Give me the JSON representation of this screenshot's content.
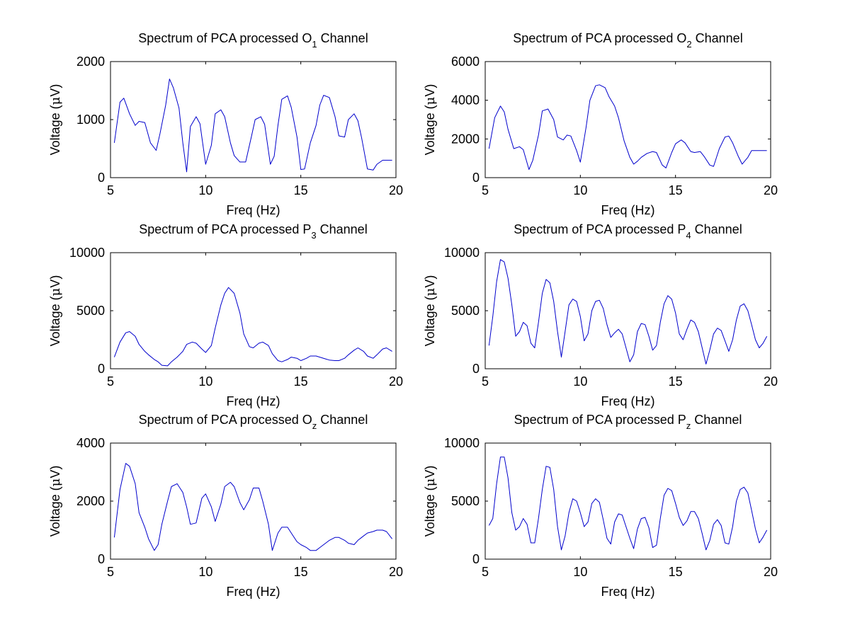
{
  "figure": {
    "background": "#ffffff",
    "line_color": "#0000cc",
    "axis_color": "#000000"
  },
  "chart_data": [
    {
      "type": "line",
      "title_prefix": "Spectrum of PCA processed O",
      "title_subscript": "1",
      "title_suffix": " Channel",
      "xlabel": "Freq (Hz)",
      "ylabel_prefix": "Voltage (",
      "ylabel_greek": "μ",
      "ylabel_suffix": "V)",
      "xlim": [
        5,
        20
      ],
      "ylim": [
        0,
        2000
      ],
      "xticks": [
        5,
        10,
        15,
        20
      ],
      "yticks": [
        0,
        1000,
        2000
      ],
      "x": [
        5.2,
        5.5,
        5.7,
        6.0,
        6.3,
        6.5,
        6.8,
        7.1,
        7.4,
        7.6,
        7.9,
        8.1,
        8.3,
        8.6,
        8.8,
        9.0,
        9.2,
        9.5,
        9.7,
        10.0,
        10.3,
        10.5,
        10.8,
        11.0,
        11.3,
        11.5,
        11.8,
        12.1,
        12.4,
        12.6,
        12.9,
        13.1,
        13.4,
        13.6,
        13.8,
        14.0,
        14.3,
        14.5,
        14.8,
        15.0,
        15.2,
        15.5,
        15.8,
        16.0,
        16.2,
        16.5,
        16.8,
        17.0,
        17.3,
        17.5,
        17.8,
        18.0,
        18.2,
        18.5,
        18.8,
        19.0,
        19.3,
        19.5,
        19.8
      ],
      "series": [
        {
          "values": [
            600,
            1300,
            1370,
            1100,
            900,
            970,
            950,
            600,
            470,
            760,
            1250,
            1700,
            1550,
            1200,
            600,
            100,
            880,
            1050,
            930,
            230,
            560,
            1100,
            1170,
            1050,
            600,
            380,
            270,
            270,
            700,
            1000,
            1050,
            920,
            230,
            370,
            900,
            1350,
            1410,
            1210,
            700,
            140,
            150,
            600,
            900,
            1250,
            1420,
            1380,
            1050,
            720,
            700,
            1000,
            1100,
            980,
            680,
            150,
            130,
            230,
            300,
            300,
            300
          ]
        }
      ]
    },
    {
      "type": "line",
      "title_prefix": "Spectrum of PCA processed O",
      "title_subscript": "2",
      "title_suffix": " Channel",
      "xlabel": "Freq (Hz)",
      "ylabel_prefix": "Voltage (",
      "ylabel_greek": "μ",
      "ylabel_suffix": "V)",
      "xlim": [
        5,
        20
      ],
      "ylim": [
        0,
        6000
      ],
      "xticks": [
        5,
        10,
        15,
        20
      ],
      "yticks": [
        0,
        2000,
        4000,
        6000
      ],
      "x": [
        5.2,
        5.5,
        5.8,
        6.0,
        6.2,
        6.5,
        6.8,
        7.0,
        7.3,
        7.5,
        7.8,
        8.0,
        8.3,
        8.6,
        8.8,
        9.1,
        9.3,
        9.5,
        9.8,
        10.0,
        10.3,
        10.5,
        10.8,
        11.0,
        11.3,
        11.5,
        11.8,
        12.0,
        12.3,
        12.6,
        12.8,
        13.0,
        13.2,
        13.5,
        13.8,
        14.0,
        14.3,
        14.5,
        14.8,
        15.0,
        15.3,
        15.5,
        15.8,
        16.0,
        16.3,
        16.5,
        16.8,
        17.0,
        17.3,
        17.6,
        17.8,
        18.0,
        18.3,
        18.5,
        18.8,
        19.0,
        19.2,
        19.5,
        19.8
      ],
      "series": [
        {
          "values": [
            1500,
            3100,
            3700,
            3400,
            2500,
            1500,
            1600,
            1450,
            420,
            900,
            2200,
            3450,
            3550,
            3000,
            2100,
            1950,
            2200,
            2150,
            1400,
            800,
            2600,
            4000,
            4750,
            4800,
            4650,
            4200,
            3700,
            3100,
            1900,
            1050,
            700,
            850,
            1050,
            1250,
            1350,
            1300,
            650,
            500,
            1300,
            1750,
            1950,
            1800,
            1350,
            1300,
            1350,
            1100,
            650,
            580,
            1500,
            2100,
            2150,
            1800,
            1100,
            700,
            1050,
            1400,
            1400,
            1400,
            1400
          ]
        }
      ]
    },
    {
      "type": "line",
      "title_prefix": "Spectrum of PCA processed P",
      "title_subscript": "3",
      "title_suffix": " Channel",
      "xlabel": "Freq (Hz)",
      "ylabel_prefix": "Voltage (",
      "ylabel_greek": "μ",
      "ylabel_suffix": "V)",
      "xlim": [
        5,
        20
      ],
      "ylim": [
        0,
        10000
      ],
      "xticks": [
        5,
        10,
        15,
        20
      ],
      "yticks": [
        0,
        5000,
        10000
      ],
      "x": [
        5.2,
        5.5,
        5.8,
        6.0,
        6.3,
        6.5,
        6.8,
        7.0,
        7.3,
        7.5,
        7.7,
        8.0,
        8.2,
        8.5,
        8.8,
        9.0,
        9.3,
        9.5,
        9.8,
        10.0,
        10.3,
        10.5,
        10.8,
        11.0,
        11.2,
        11.5,
        11.8,
        12.0,
        12.3,
        12.5,
        12.8,
        13.0,
        13.3,
        13.5,
        13.8,
        14.0,
        14.3,
        14.5,
        14.8,
        15.0,
        15.3,
        15.5,
        15.8,
        16.0,
        16.3,
        16.5,
        16.8,
        17.0,
        17.3,
        17.5,
        17.8,
        18.0,
        18.3,
        18.5,
        18.8,
        19.0,
        19.3,
        19.5,
        19.8
      ],
      "series": [
        {
          "values": [
            1000,
            2300,
            3100,
            3200,
            2800,
            2100,
            1500,
            1200,
            800,
            600,
            300,
            250,
            600,
            1000,
            1500,
            2100,
            2300,
            2200,
            1700,
            1400,
            2000,
            3500,
            5500,
            6500,
            7000,
            6500,
            4800,
            3000,
            1900,
            1800,
            2200,
            2300,
            2000,
            1300,
            700,
            600,
            800,
            1000,
            900,
            700,
            900,
            1100,
            1100,
            1000,
            850,
            750,
            700,
            700,
            900,
            1200,
            1600,
            1800,
            1500,
            1100,
            900,
            1200,
            1700,
            1800,
            1500
          ]
        }
      ]
    },
    {
      "type": "line",
      "title_prefix": "Spectrum of PCA processed P",
      "title_subscript": "4",
      "title_suffix": " Channel",
      "xlabel": "Freq (Hz)",
      "ylabel_prefix": "Voltage (",
      "ylabel_greek": "μ",
      "ylabel_suffix": "V)",
      "xlim": [
        5,
        20
      ],
      "ylim": [
        0,
        10000
      ],
      "xticks": [
        5,
        10,
        15,
        20
      ],
      "yticks": [
        0,
        5000,
        10000
      ],
      "x": [
        5.2,
        5.4,
        5.6,
        5.8,
        6.0,
        6.2,
        6.4,
        6.6,
        6.8,
        7.0,
        7.2,
        7.4,
        7.6,
        7.8,
        8.0,
        8.2,
        8.4,
        8.6,
        8.8,
        9.0,
        9.2,
        9.4,
        9.6,
        9.8,
        10.0,
        10.2,
        10.4,
        10.6,
        10.8,
        11.0,
        11.2,
        11.4,
        11.6,
        11.8,
        12.0,
        12.2,
        12.4,
        12.6,
        12.8,
        13.0,
        13.2,
        13.4,
        13.6,
        13.8,
        14.0,
        14.2,
        14.4,
        14.6,
        14.8,
        15.0,
        15.2,
        15.4,
        15.6,
        15.8,
        16.0,
        16.2,
        16.4,
        16.6,
        16.8,
        17.0,
        17.2,
        17.4,
        17.6,
        17.8,
        18.0,
        18.2,
        18.4,
        18.6,
        18.8,
        19.0,
        19.2,
        19.4,
        19.6,
        19.8
      ],
      "series": [
        {
          "values": [
            2000,
            4500,
            7500,
            9400,
            9200,
            7800,
            5500,
            2800,
            3200,
            4000,
            3700,
            2200,
            1800,
            4000,
            6500,
            7700,
            7400,
            5800,
            3200,
            1000,
            3200,
            5500,
            6000,
            5800,
            4500,
            2400,
            3000,
            5000,
            5800,
            5900,
            5200,
            3800,
            2700,
            3100,
            3400,
            3000,
            1800,
            600,
            1200,
            3200,
            3900,
            3800,
            2800,
            1600,
            2000,
            4000,
            5600,
            6300,
            6000,
            4800,
            3000,
            2500,
            3400,
            4200,
            4000,
            3200,
            1800,
            400,
            1600,
            3000,
            3500,
            3300,
            2400,
            1500,
            2500,
            4200,
            5400,
            5600,
            5000,
            3800,
            2500,
            1800,
            2200,
            2800
          ]
        }
      ]
    },
    {
      "type": "line",
      "title_prefix": "Spectrum of PCA processed O",
      "title_subscript": "z",
      "title_suffix": " Channel",
      "xlabel": "Freq (Hz)",
      "ylabel_prefix": "Voltage (",
      "ylabel_greek": "μ",
      "ylabel_suffix": "V)",
      "xlim": [
        5,
        20
      ],
      "ylim": [
        0,
        4000
      ],
      "xticks": [
        5,
        10,
        15,
        20
      ],
      "yticks": [
        0,
        2000,
        4000
      ],
      "x": [
        5.2,
        5.5,
        5.8,
        6.0,
        6.3,
        6.5,
        6.8,
        7.0,
        7.3,
        7.5,
        7.7,
        8.0,
        8.2,
        8.5,
        8.8,
        9.0,
        9.2,
        9.5,
        9.8,
        10.0,
        10.3,
        10.5,
        10.8,
        11.0,
        11.3,
        11.5,
        11.8,
        12.0,
        12.3,
        12.5,
        12.8,
        13.0,
        13.3,
        13.5,
        13.8,
        14.0,
        14.3,
        14.5,
        14.8,
        15.0,
        15.3,
        15.5,
        15.8,
        16.0,
        16.3,
        16.5,
        16.8,
        17.0,
        17.3,
        17.5,
        17.8,
        18.0,
        18.3,
        18.5,
        18.8,
        19.0,
        19.3,
        19.5,
        19.8
      ],
      "series": [
        {
          "values": [
            750,
            2400,
            3300,
            3200,
            2600,
            1600,
            1100,
            700,
            300,
            500,
            1200,
            2000,
            2500,
            2600,
            2300,
            1800,
            1200,
            1250,
            2100,
            2250,
            1800,
            1300,
            1900,
            2500,
            2650,
            2500,
            1950,
            1700,
            2050,
            2450,
            2450,
            2000,
            1200,
            300,
            900,
            1100,
            1100,
            900,
            600,
            500,
            400,
            300,
            300,
            400,
            550,
            650,
            750,
            750,
            650,
            550,
            500,
            650,
            800,
            900,
            950,
            1000,
            1000,
            950,
            700
          ]
        }
      ]
    },
    {
      "type": "line",
      "title_prefix": "Spectrum of PCA processed P",
      "title_subscript": "z",
      "title_suffix": " Channel",
      "xlabel": "Freq (Hz)",
      "ylabel_prefix": "Voltage (",
      "ylabel_greek": "μ",
      "ylabel_suffix": "V)",
      "xlim": [
        5,
        20
      ],
      "ylim": [
        0,
        10000
      ],
      "xticks": [
        5,
        10,
        15,
        20
      ],
      "yticks": [
        0,
        5000,
        10000
      ],
      "x": [
        5.2,
        5.4,
        5.6,
        5.8,
        6.0,
        6.2,
        6.4,
        6.6,
        6.8,
        7.0,
        7.2,
        7.4,
        7.6,
        7.8,
        8.0,
        8.2,
        8.4,
        8.6,
        8.8,
        9.0,
        9.2,
        9.4,
        9.6,
        9.8,
        10.0,
        10.2,
        10.4,
        10.6,
        10.8,
        11.0,
        11.2,
        11.4,
        11.6,
        11.8,
        12.0,
        12.2,
        12.4,
        12.6,
        12.8,
        13.0,
        13.2,
        13.4,
        13.6,
        13.8,
        14.0,
        14.2,
        14.4,
        14.6,
        14.8,
        15.0,
        15.2,
        15.4,
        15.6,
        15.8,
        16.0,
        16.2,
        16.4,
        16.6,
        16.8,
        17.0,
        17.2,
        17.4,
        17.6,
        17.8,
        18.0,
        18.2,
        18.4,
        18.6,
        18.8,
        19.0,
        19.2,
        19.4,
        19.6,
        19.8
      ],
      "series": [
        {
          "values": [
            2900,
            3500,
            6500,
            8800,
            8800,
            7000,
            4000,
            2500,
            2800,
            3500,
            3000,
            1400,
            1400,
            3500,
            6000,
            8000,
            7900,
            6000,
            2800,
            800,
            2000,
            4000,
            5200,
            5000,
            4000,
            2800,
            3200,
            4800,
            5200,
            4900,
            3400,
            1800,
            1300,
            3200,
            3900,
            3800,
            2800,
            1800,
            900,
            2600,
            3500,
            3600,
            2700,
            1000,
            1200,
            3500,
            5500,
            6100,
            5900,
            4800,
            3600,
            2900,
            3300,
            4100,
            4100,
            3500,
            2200,
            800,
            1600,
            3000,
            3400,
            2900,
            1400,
            1300,
            2800,
            5000,
            6000,
            6200,
            5700,
            4200,
            2600,
            1400,
            1900,
            2500
          ]
        }
      ]
    }
  ]
}
